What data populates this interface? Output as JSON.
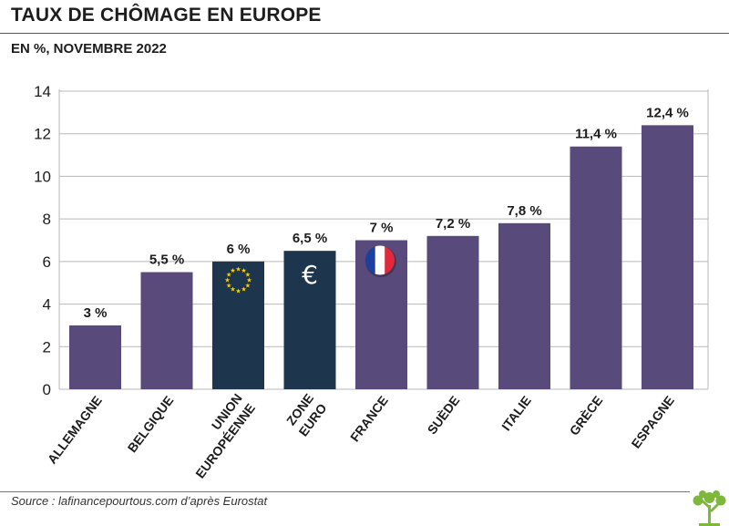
{
  "header": {
    "title": "TAUX DE CHÔMAGE EN EUROPE",
    "subtitle": "EN %, NOVEMBRE 2022"
  },
  "footer": {
    "source": "Source : lafinancepourtous.com d’après Eurostat"
  },
  "colors": {
    "bar_default": "#584a7a",
    "bar_eu": "#1d364d",
    "grid": "#b8b8b8",
    "text": "#1d1d1d",
    "logo": "#7db83a"
  },
  "chart_data": {
    "type": "bar",
    "title": "TAUX DE CHÔMAGE EN EUROPE",
    "subtitle": "EN %, NOVEMBRE 2022",
    "xlabel": "",
    "ylabel": "",
    "ylim": [
      0,
      14
    ],
    "yticks": [
      0,
      2,
      4,
      6,
      8,
      10,
      12,
      14
    ],
    "grid": "horizontal",
    "legend": "none",
    "categories": [
      "ALLEMAGNE",
      "BELGIQUE",
      "UNION EUROPÉENNE",
      "ZONE EURO",
      "FRANCE",
      "SUÈDE",
      "ITALIE",
      "GRÈCE",
      "ESPAGNE"
    ],
    "values": [
      3,
      5.5,
      6,
      6.5,
      7,
      7.2,
      7.8,
      11.4,
      12.4
    ],
    "data_labels": [
      "3 %",
      "5,5 %",
      "6 %",
      "6,5 %",
      "7 %",
      "7,2 %",
      "7,8 %",
      "11,4 %",
      "12,4 %"
    ],
    "highlight": [
      "default",
      "default",
      "eu",
      "eu",
      "default",
      "default",
      "default",
      "default",
      "default"
    ],
    "bar_icons": [
      "",
      "",
      "eu-stars-icon",
      "euro-sign-icon",
      "france-flag-icon",
      "",
      "",
      "",
      ""
    ],
    "euro_symbol": "€"
  }
}
